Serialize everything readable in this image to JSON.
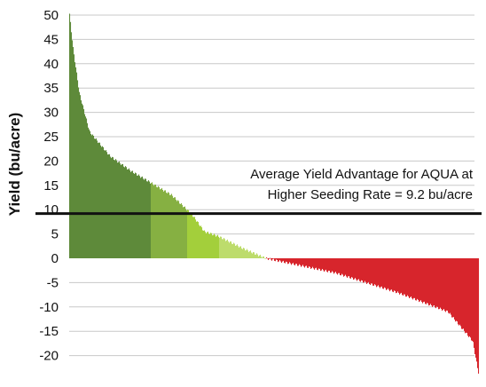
{
  "chart_data": {
    "type": "bar",
    "title": "",
    "xlabel": "",
    "ylabel": "Yield (bu/acre)",
    "ylim": [
      -25,
      51
    ],
    "yticks": [
      50,
      45,
      40,
      35,
      30,
      25,
      20,
      15,
      10,
      5,
      0,
      -5,
      -10,
      -15,
      -20
    ],
    "grid": true,
    "average_line": 9.2,
    "annotation": [
      "Average Yield Advantage for AQUA at",
      "Higher Seeding Rate = 9.2 bu/acre"
    ],
    "segments": [
      {
        "color": "#5e8a3a",
        "label": "",
        "anchors": [
          [
            0,
            51
          ],
          [
            0.02,
            43
          ],
          [
            0.05,
            34
          ],
          [
            0.1,
            26
          ],
          [
            0.2,
            21
          ],
          [
            0.3,
            18
          ],
          [
            0.4,
            15.5
          ]
        ]
      },
      {
        "color": "#86b042",
        "label": "",
        "anchors": [
          [
            0.4,
            15.5
          ],
          [
            0.5,
            13
          ],
          [
            0.575,
            10
          ]
        ]
      },
      {
        "color": "#a3cf3b",
        "label": "",
        "anchors": [
          [
            0.575,
            10
          ],
          [
            0.6,
            9
          ],
          [
            0.66,
            5.5
          ],
          [
            0.73,
            4.5
          ]
        ]
      },
      {
        "color": "#bddc6c",
        "label": "",
        "anchors": [
          [
            0.73,
            4.5
          ],
          [
            0.85,
            2
          ],
          [
            0.96,
            0
          ]
        ]
      },
      {
        "color": "#d7252c",
        "label": "",
        "anchors": [
          [
            0.96,
            0
          ],
          [
            1.3,
            -3
          ],
          [
            1.6,
            -7
          ],
          [
            1.85,
            -11
          ],
          [
            1.97,
            -17
          ],
          [
            2.0,
            -24
          ]
        ]
      }
    ],
    "x_span": [
      0,
      2.0
    ]
  }
}
